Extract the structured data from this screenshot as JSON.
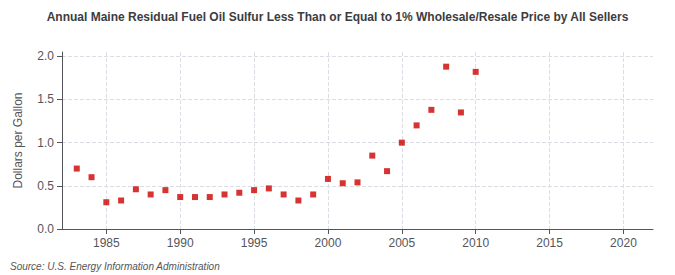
{
  "chart_data": {
    "type": "scatter",
    "title": "Annual Maine Residual Fuel Oil Sulfur Less Than or Equal to 1% Wholesale/Resale Price by All Sellers",
    "ylabel": "Dollars per Gallon",
    "annotations": [
      "Source: U.S. Energy Information Administration"
    ],
    "color": "#cc0000",
    "marker": "square",
    "grid": true,
    "xlim": [
      1982,
      2022
    ],
    "ylim": [
      0.0,
      2.05
    ],
    "xticks": [
      1985,
      1990,
      1995,
      2000,
      2005,
      2010,
      2015,
      2020
    ],
    "yticks": [
      {
        "value": 0.0,
        "label": "0.0"
      },
      0.5,
      {
        "value": 1.0,
        "label": "1.0"
      },
      1.5,
      {
        "value": 2.0,
        "label": "2.0"
      }
    ],
    "x": [
      1983,
      1984,
      1985,
      1986,
      1987,
      1988,
      1989,
      1990,
      1991,
      1992,
      1993,
      1994,
      1995,
      1996,
      1997,
      1998,
      1999,
      2000,
      2001,
      2002,
      2003,
      2004,
      2005,
      2006,
      2007,
      2008,
      2009,
      2010
    ],
    "values": [
      0.7,
      0.6,
      0.31,
      0.33,
      0.46,
      0.4,
      0.45,
      0.37,
      0.37,
      0.37,
      0.4,
      0.42,
      0.45,
      0.47,
      0.4,
      0.33,
      0.4,
      0.58,
      0.53,
      0.54,
      0.85,
      0.67,
      1.0,
      1.2,
      1.38,
      1.88,
      1.35,
      1.82
    ]
  }
}
